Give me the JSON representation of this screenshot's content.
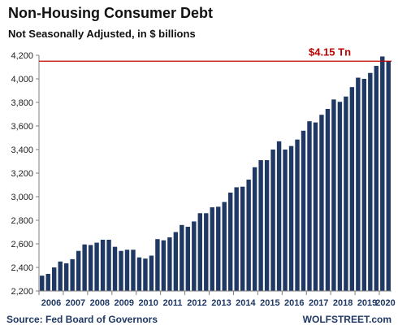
{
  "chart_data": {
    "type": "bar",
    "title": "Non-Housing  Consumer  Debt",
    "subtitle": "Not Seasonally Adjusted, in $ billions",
    "ylim": [
      2200,
      4200
    ],
    "yticks": [
      2200,
      2400,
      2600,
      2800,
      3000,
      3200,
      3400,
      3600,
      3800,
      4000,
      4200
    ],
    "ytick_labels": [
      "2,200",
      "2,400",
      "2,600",
      "2,800",
      "3,000",
      "3,200",
      "3,400",
      "3,600",
      "3,800",
      "4,000",
      "4,200"
    ],
    "year_labels": [
      "2006",
      "2007",
      "2008",
      "2009",
      "2010",
      "2011",
      "2012",
      "2013",
      "2014",
      "2015",
      "2016",
      "2017",
      "2018",
      "2019",
      "2020"
    ],
    "values": [
      2330,
      2345,
      2400,
      2450,
      2435,
      2470,
      2540,
      2595,
      2590,
      2610,
      2635,
      2635,
      2575,
      2540,
      2550,
      2550,
      2485,
      2475,
      2500,
      2640,
      2630,
      2655,
      2700,
      2760,
      2745,
      2790,
      2860,
      2860,
      2910,
      2915,
      2955,
      3035,
      3080,
      3085,
      3145,
      3250,
      3310,
      3310,
      3400,
      3470,
      3400,
      3430,
      3485,
      3560,
      3640,
      3630,
      3695,
      3745,
      3825,
      3805,
      3850,
      3930,
      4010,
      4000,
      4050,
      4110,
      4190,
      4150
    ],
    "reference_line": {
      "value": 4150,
      "label": "$4.15 Tn"
    },
    "grid": false,
    "legend": "none",
    "colors": {
      "bar": "#1f3864",
      "reference": "#c00000",
      "axis": "#7f7f7f"
    }
  },
  "footer": {
    "source": "Source: Fed Board of Governors",
    "brand": "WOLFSTREET.com"
  }
}
